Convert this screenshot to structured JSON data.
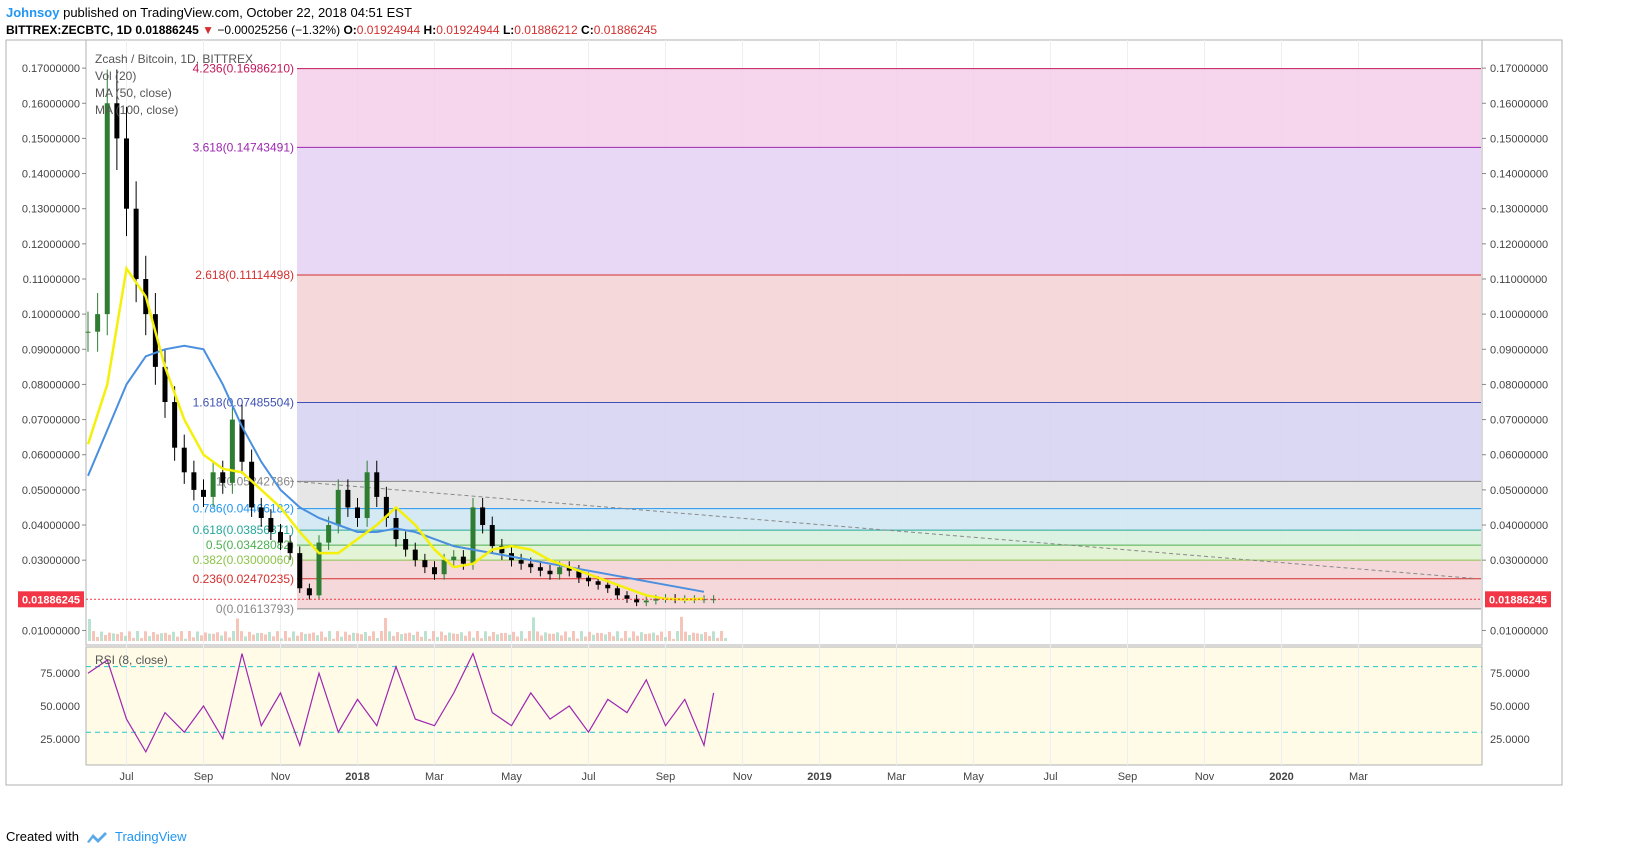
{
  "header": {
    "author": "Johnsoy",
    "published": "published on TradingView.com, October 22, 2018 04:51 EST",
    "symbol": "BITTREX:ZECBTC, 1D",
    "last": "0.01886245",
    "change_arrow": "▼",
    "change": "−0.00025256 (−1.32%)",
    "o_label": "O:",
    "o_val": "0.01924944",
    "h_label": "H:",
    "h_val": "0.01924944",
    "l_label": "L:",
    "l_val": "0.01886212",
    "c_label": "C:",
    "c_val": "0.01886245"
  },
  "legend": {
    "title": "Zcash / Bitcoin, 1D, BITTREX",
    "vol": "Vol (20)",
    "ma50": "MA (50, close)",
    "ma100": "MA (100, close)",
    "rsi": "RSI (8, close)"
  },
  "footer": {
    "created": "Created with",
    "brand": "TradingView"
  },
  "colors": {
    "ma50": "#f5f00a",
    "ma100": "#4a8fe0",
    "rsi": "#9c27b0",
    "up": "#2e7d32",
    "down": "#000000",
    "price_tag": "#f23645"
  },
  "chart_data": {
    "type": "line",
    "title": "Zcash / Bitcoin, 1D, BITTREX",
    "price_axis": {
      "ylim": [
        0.007,
        0.178
      ],
      "ticks": [
        "0.17000000",
        "0.16000000",
        "0.15000000",
        "0.14000000",
        "0.13000000",
        "0.12000000",
        "0.11000000",
        "0.10000000",
        "0.09000000",
        "0.08000000",
        "0.07000000",
        "0.06000000",
        "0.05000000",
        "0.04000000",
        "0.03000000",
        "0.01000000"
      ],
      "tick_values": [
        0.17,
        0.16,
        0.15,
        0.14,
        0.13,
        0.12,
        0.11,
        0.1,
        0.09,
        0.08,
        0.07,
        0.06,
        0.05,
        0.04,
        0.03,
        0.01
      ],
      "last_price_label": "0.01886245",
      "last_price": 0.01886245
    },
    "rsi_axis": {
      "ylim": [
        5,
        95
      ],
      "ticks": [
        "75.0000",
        "50.0000",
        "25.0000"
      ],
      "tick_values": [
        75,
        50,
        25
      ],
      "bands": [
        80,
        30
      ]
    },
    "time_axis": {
      "labels": [
        "Jul",
        "Sep",
        "Nov",
        "2018",
        "Mar",
        "May",
        "Jul",
        "Sep",
        "Nov",
        "2019",
        "Mar",
        "May",
        "Jul",
        "Sep",
        "Nov",
        "2020",
        "Mar"
      ],
      "bold": [
        "2018",
        "2019",
        "2020"
      ],
      "months_since_jun2017": [
        1,
        3,
        5,
        7,
        9,
        11,
        13,
        15,
        17,
        19,
        21,
        23,
        25,
        27,
        29,
        31,
        33
      ]
    },
    "fib_levels": [
      {
        "ratio": "4.236",
        "value": 0.1698621,
        "label": "4.236(0.16986210)",
        "color": "#c2185b",
        "fill": "#f4d2ea"
      },
      {
        "ratio": "3.618",
        "value": 0.14743491,
        "label": "3.618(0.14743491)",
        "color": "#9c27b0",
        "fill": "#e7d3f5"
      },
      {
        "ratio": "2.618",
        "value": 0.11114498,
        "label": "2.618(0.11114498)",
        "color": "#d32f2f",
        "fill": "#f4d4d6"
      },
      {
        "ratio": "1.618",
        "value": 0.07485504,
        "label": "1.618(0.07485504)",
        "color": "#3f51b5",
        "fill": "#d6d4f1"
      },
      {
        "ratio": "1",
        "value": 0.05242786,
        "label": "1(0.05242786)",
        "color": "#888888",
        "fill": "#e3e3e3"
      },
      {
        "ratio": "0.786",
        "value": 0.04466182,
        "label": "0.786(0.04466182)",
        "color": "#2196f3",
        "fill": "#d0e7f4"
      },
      {
        "ratio": "0.618",
        "value": 0.03856371,
        "label": "0.618(0.03856371)",
        "color": "#26a69a",
        "fill": "#d7f0df"
      },
      {
        "ratio": "0.5",
        "value": 0.03428082,
        "label": "0.5(0.03428082)",
        "color": "#4caf50",
        "fill": "#e0f2d2"
      },
      {
        "ratio": "0.382",
        "value": 0.0300006,
        "label": "0.382(0.03000060)",
        "color": "#8bc34a",
        "fill": "#f4d4d6"
      },
      {
        "ratio": "0.236",
        "value": 0.02470235,
        "label": "0.236(0.02470235)",
        "color": "#d32f2f",
        "fill": "#f4d4d6"
      },
      {
        "ratio": "0",
        "value": 0.01613793,
        "label": "0(0.01613793)",
        "color": "#888888",
        "fill": ""
      }
    ],
    "price_series": {
      "name": "ZECBTC close",
      "month_offsets": [
        0,
        0.25,
        0.5,
        0.75,
        1,
        1.25,
        1.5,
        1.75,
        2,
        2.25,
        2.5,
        2.75,
        3,
        3.25,
        3.5,
        3.75,
        4,
        4.25,
        4.5,
        4.75,
        5,
        5.25,
        5.5,
        5.75,
        6,
        6.25,
        6.5,
        6.75,
        7,
        7.25,
        7.5,
        7.75,
        8,
        8.25,
        8.5,
        8.75,
        9,
        9.25,
        9.5,
        9.75,
        10,
        10.25,
        10.5,
        10.75,
        11,
        11.25,
        11.5,
        11.75,
        12,
        12.25,
        12.5,
        12.75,
        13,
        13.25,
        13.5,
        13.75,
        14,
        14.25,
        14.5,
        14.75,
        15,
        15.25,
        15.5,
        15.75,
        16,
        16.25
      ],
      "values": [
        0.095,
        0.1,
        0.16,
        0.15,
        0.13,
        0.11,
        0.1,
        0.085,
        0.075,
        0.062,
        0.055,
        0.05,
        0.048,
        0.055,
        0.052,
        0.07,
        0.058,
        0.045,
        0.042,
        0.038,
        0.035,
        0.032,
        0.022,
        0.02,
        0.035,
        0.04,
        0.05,
        0.045,
        0.042,
        0.055,
        0.048,
        0.042,
        0.036,
        0.033,
        0.03,
        0.028,
        0.026,
        0.03,
        0.031,
        0.029,
        0.045,
        0.04,
        0.034,
        0.032,
        0.03,
        0.029,
        0.028,
        0.027,
        0.026,
        0.028,
        0.027,
        0.025,
        0.024,
        0.023,
        0.022,
        0.02,
        0.019,
        0.018,
        0.0185,
        0.019,
        0.0192,
        0.0189,
        0.0189,
        0.0189,
        0.0189,
        0.0189
      ]
    },
    "ma50_series": {
      "month_offsets": [
        0,
        0.5,
        1,
        1.5,
        2,
        2.5,
        3,
        3.5,
        4,
        4.5,
        5,
        5.5,
        6,
        6.5,
        7,
        7.5,
        8,
        8.5,
        9,
        9.5,
        10,
        10.5,
        11,
        11.5,
        12,
        12.5,
        13,
        13.5,
        14,
        14.5,
        15,
        15.5,
        16
      ],
      "values": [
        0.063,
        0.08,
        0.113,
        0.105,
        0.085,
        0.07,
        0.06,
        0.056,
        0.055,
        0.05,
        0.045,
        0.038,
        0.032,
        0.032,
        0.036,
        0.04,
        0.045,
        0.04,
        0.033,
        0.028,
        0.029,
        0.033,
        0.034,
        0.033,
        0.03,
        0.028,
        0.026,
        0.024,
        0.022,
        0.02,
        0.019,
        0.0188,
        0.019
      ]
    },
    "ma100_series": {
      "month_offsets": [
        0,
        0.5,
        1,
        1.5,
        2,
        2.5,
        3,
        3.5,
        4,
        4.5,
        5,
        5.5,
        6,
        6.5,
        7,
        7.5,
        8,
        8.5,
        9,
        9.5,
        10,
        10.5,
        11,
        11.5,
        12,
        12.5,
        13,
        13.5,
        14,
        14.5,
        15,
        15.5,
        16
      ],
      "values": [
        0.054,
        0.067,
        0.08,
        0.088,
        0.09,
        0.091,
        0.09,
        0.08,
        0.068,
        0.058,
        0.05,
        0.045,
        0.042,
        0.04,
        0.038,
        0.038,
        0.039,
        0.038,
        0.036,
        0.034,
        0.033,
        0.032,
        0.031,
        0.03,
        0.029,
        0.028,
        0.027,
        0.026,
        0.025,
        0.024,
        0.023,
        0.022,
        0.021
      ]
    },
    "rsi_series": {
      "month_offsets": [
        0,
        0.5,
        1,
        1.5,
        2,
        2.5,
        3,
        3.5,
        4,
        4.5,
        5,
        5.5,
        6,
        6.5,
        7,
        7.5,
        8,
        8.5,
        9,
        9.5,
        10,
        10.5,
        11,
        11.5,
        12,
        12.5,
        13,
        13.5,
        14,
        14.5,
        15,
        15.5,
        16,
        16.25
      ],
      "values": [
        75,
        85,
        40,
        15,
        45,
        30,
        50,
        25,
        90,
        35,
        60,
        20,
        75,
        30,
        55,
        35,
        80,
        40,
        35,
        60,
        90,
        45,
        35,
        60,
        40,
        50,
        30,
        55,
        45,
        70,
        35,
        55,
        20,
        60
      ]
    },
    "trendline": {
      "from_month": 5.25,
      "from_value": 0.0525,
      "to_month": 36,
      "to_value": 0.0248
    }
  }
}
